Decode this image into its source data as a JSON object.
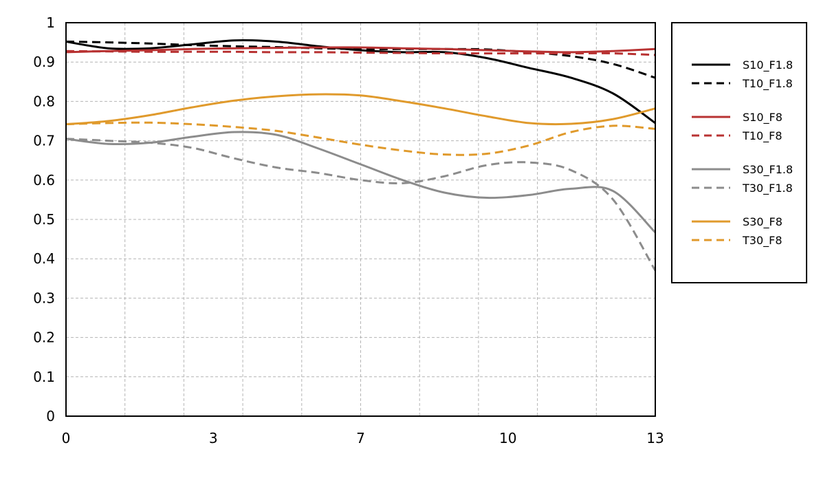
{
  "chart_data": {
    "type": "line",
    "title": "",
    "xlabel": "",
    "ylabel": "",
    "xlim": [
      0,
      14
    ],
    "ylim": [
      0,
      1
    ],
    "x_tick_labels": [
      "0",
      "3",
      "7",
      "10",
      "13"
    ],
    "x_tick_values": [
      0,
      3.5,
      7,
      10.5,
      14
    ],
    "y_ticks": [
      "0",
      "0.1",
      "0.2",
      "0.3",
      "0.4",
      "0.5",
      "0.6",
      "0.7",
      "0.8",
      "0.9",
      "1"
    ],
    "y_tick_values": [
      0,
      0.1,
      0.2,
      0.3,
      0.4,
      0.5,
      0.6,
      0.7,
      0.8,
      0.9,
      1
    ],
    "grid": true,
    "legend_position": "right",
    "series": [
      {
        "name": "S10_F1.8",
        "color": "#000000",
        "dashed": false,
        "x": [
          0,
          1,
          2,
          3,
          4,
          5,
          6,
          7,
          8,
          9,
          10,
          11,
          12,
          13,
          14
        ],
        "y": [
          0.952,
          0.935,
          0.935,
          0.945,
          0.955,
          0.952,
          0.94,
          0.93,
          0.925,
          0.925,
          0.91,
          0.885,
          0.86,
          0.82,
          0.745
        ]
      },
      {
        "name": "T10_F1.8",
        "color": "#000000",
        "dashed": true,
        "x": [
          0,
          1,
          2,
          3,
          4,
          5,
          6,
          7,
          8,
          9,
          10,
          11,
          12,
          13,
          14
        ],
        "y": [
          0.952,
          0.95,
          0.947,
          0.943,
          0.94,
          0.938,
          0.935,
          0.933,
          0.933,
          0.933,
          0.932,
          0.925,
          0.915,
          0.895,
          0.86
        ]
      },
      {
        "name": "S10_F8",
        "color": "#b83232",
        "dashed": false,
        "x": [
          0,
          1,
          2,
          3,
          4,
          5,
          6,
          7,
          8,
          9,
          10,
          11,
          12,
          13,
          14
        ],
        "y": [
          0.925,
          0.928,
          0.93,
          0.933,
          0.935,
          0.936,
          0.937,
          0.937,
          0.935,
          0.933,
          0.93,
          0.927,
          0.925,
          0.928,
          0.933
        ]
      },
      {
        "name": "T10_F8",
        "color": "#b83232",
        "dashed": true,
        "x": [
          0,
          1,
          2,
          3,
          4,
          5,
          6,
          7,
          8,
          9,
          10,
          11,
          12,
          13,
          14
        ],
        "y": [
          0.928,
          0.927,
          0.926,
          0.926,
          0.926,
          0.925,
          0.925,
          0.924,
          0.923,
          0.922,
          0.922,
          0.922,
          0.922,
          0.922,
          0.918
        ]
      },
      {
        "name": "S30_F1.8",
        "color": "#8c8c8c",
        "dashed": false,
        "x": [
          0,
          1,
          2,
          3,
          4,
          5,
          6,
          7,
          8,
          9,
          10,
          11,
          12,
          13,
          14
        ],
        "y": [
          0.705,
          0.692,
          0.695,
          0.71,
          0.722,
          0.715,
          0.68,
          0.64,
          0.6,
          0.568,
          0.555,
          0.562,
          0.578,
          0.572,
          0.467
        ]
      },
      {
        "name": "T30_F1.8",
        "color": "#8c8c8c",
        "dashed": true,
        "x": [
          0,
          1,
          2,
          3,
          4,
          5,
          6,
          7,
          8,
          9,
          10,
          11,
          12,
          13,
          14
        ],
        "y": [
          0.705,
          0.7,
          0.695,
          0.682,
          0.655,
          0.632,
          0.618,
          0.6,
          0.592,
          0.61,
          0.638,
          0.645,
          0.625,
          0.55,
          0.37
        ]
      },
      {
        "name": "S30_F8",
        "color": "#e09a2c",
        "dashed": false,
        "x": [
          0,
          1,
          2,
          3,
          4,
          5,
          6,
          7,
          8,
          9,
          10,
          11,
          12,
          13,
          14
        ],
        "y": [
          0.742,
          0.75,
          0.765,
          0.785,
          0.802,
          0.813,
          0.818,
          0.815,
          0.8,
          0.782,
          0.762,
          0.745,
          0.743,
          0.755,
          0.782
        ]
      },
      {
        "name": "T30_F8",
        "color": "#e09a2c",
        "dashed": true,
        "x": [
          0,
          1,
          2,
          3,
          4,
          5,
          6,
          7,
          8,
          9,
          10,
          11,
          12,
          13,
          14
        ],
        "y": [
          0.742,
          0.745,
          0.746,
          0.742,
          0.735,
          0.725,
          0.708,
          0.69,
          0.675,
          0.665,
          0.667,
          0.688,
          0.722,
          0.738,
          0.73
        ]
      }
    ]
  }
}
